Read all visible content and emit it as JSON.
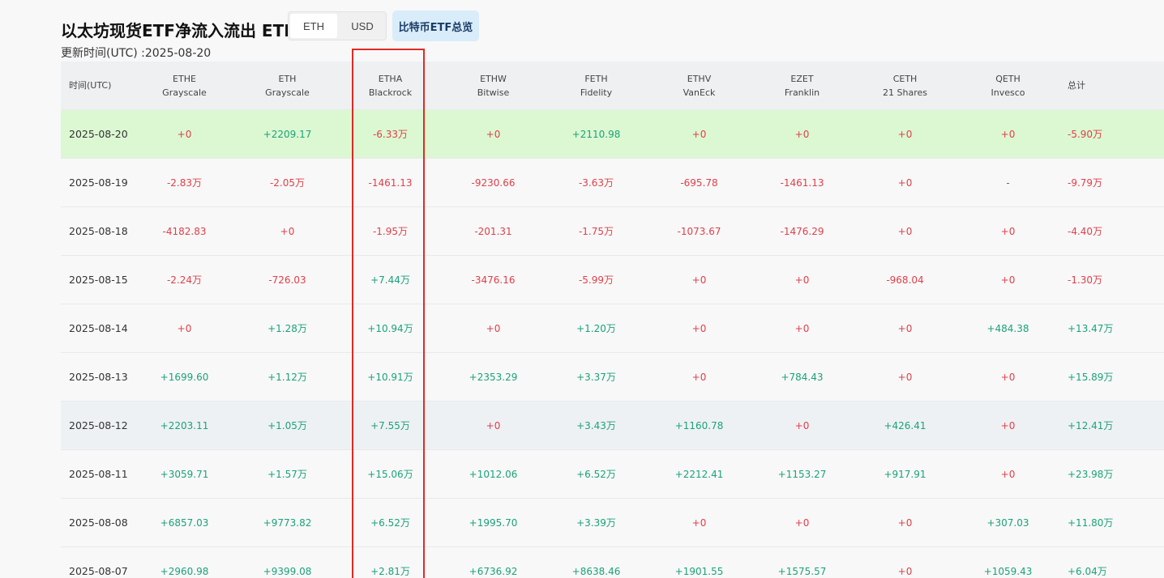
{
  "header": {
    "title": "以太坊现货ETF净流入流出 ETH",
    "toggle": [
      "ETH",
      "USD"
    ],
    "active_unit": "ETH",
    "btc_overview": "比特币ETF总览",
    "updated": "更新时间(UTC) :2025-08-20"
  },
  "table": {
    "columns": [
      {
        "ticker": "时间(UTC)",
        "issuer": ""
      },
      {
        "ticker": "ETHE",
        "issuer": "Grayscale"
      },
      {
        "ticker": "ETH",
        "issuer": "Grayscale"
      },
      {
        "ticker": "ETHA",
        "issuer": "Blackrock"
      },
      {
        "ticker": "ETHW",
        "issuer": "Bitwise"
      },
      {
        "ticker": "FETH",
        "issuer": "Fidelity"
      },
      {
        "ticker": "ETHV",
        "issuer": "VanEck"
      },
      {
        "ticker": "EZET",
        "issuer": "Franklin"
      },
      {
        "ticker": "CETH",
        "issuer": "21 Shares"
      },
      {
        "ticker": "QETH",
        "issuer": "Invesco"
      },
      {
        "ticker": "总计",
        "issuer": ""
      }
    ],
    "rows": [
      {
        "date": "2025-08-20",
        "values": [
          "+0",
          "+2209.17",
          "-6.33万",
          "+0",
          "+2110.98",
          "+0",
          "+0",
          "+0",
          "+0",
          "-5.90万"
        ]
      },
      {
        "date": "2025-08-19",
        "values": [
          "-2.83万",
          "-2.05万",
          "-1461.13",
          "-9230.66",
          "-3.63万",
          "-695.78",
          "-1461.13",
          "+0",
          "-",
          "-9.79万"
        ]
      },
      {
        "date": "2025-08-18",
        "values": [
          "-4182.83",
          "+0",
          "-1.95万",
          "-201.31",
          "-1.75万",
          "-1073.67",
          "-1476.29",
          "+0",
          "+0",
          "-4.40万"
        ]
      },
      {
        "date": "2025-08-15",
        "values": [
          "-2.24万",
          "-726.03",
          "+7.44万",
          "-3476.16",
          "-5.99万",
          "+0",
          "+0",
          "-968.04",
          "+0",
          "-1.30万"
        ]
      },
      {
        "date": "2025-08-14",
        "values": [
          "+0",
          "+1.28万",
          "+10.94万",
          "+0",
          "+1.20万",
          "+0",
          "+0",
          "+0",
          "+484.38",
          "+13.47万"
        ]
      },
      {
        "date": "2025-08-13",
        "values": [
          "+1699.60",
          "+1.12万",
          "+10.91万",
          "+2353.29",
          "+3.37万",
          "+0",
          "+784.43",
          "+0",
          "+0",
          "+15.89万"
        ]
      },
      {
        "date": "2025-08-12",
        "values": [
          "+2203.11",
          "+1.05万",
          "+7.55万",
          "+0",
          "+3.43万",
          "+1160.78",
          "+0",
          "+426.41",
          "+0",
          "+12.41万"
        ]
      },
      {
        "date": "2025-08-11",
        "values": [
          "+3059.71",
          "+1.57万",
          "+15.06万",
          "+1012.06",
          "+6.52万",
          "+2212.41",
          "+1153.27",
          "+917.91",
          "+0",
          "+23.98万"
        ]
      },
      {
        "date": "2025-08-08",
        "values": [
          "+6857.03",
          "+9773.82",
          "+6.52万",
          "+1995.70",
          "+3.39万",
          "+0",
          "+0",
          "+0",
          "+307.03",
          "+11.80万"
        ]
      },
      {
        "date": "2025-08-07",
        "values": [
          "+2960.98",
          "+9399.08",
          "+2.81万",
          "+6736.92",
          "+8638.46",
          "+1901.55",
          "+1575.57",
          "+0",
          "+1059.43",
          "+6.04万"
        ]
      }
    ],
    "highlight_row": "2025-08-20",
    "hover_row": "2025-08-12",
    "annotated_column": "ETHA"
  },
  "colors": {
    "positive": "#1ba27a",
    "negative": "#e0404a",
    "highlight": "#dcf8d2",
    "annotation": "#e02a25"
  }
}
